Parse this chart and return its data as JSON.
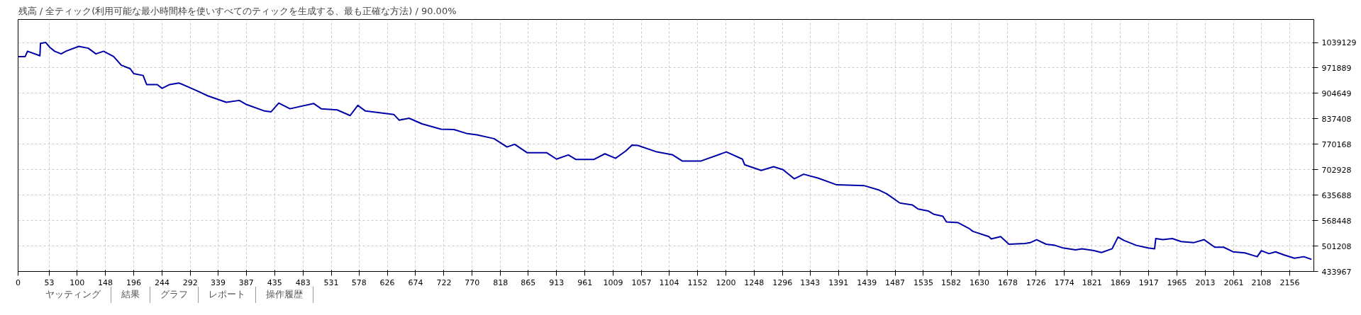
{
  "chart_data": {
    "type": "line",
    "title": "残高 / 全ティック(利用可能な最小時間枠を使いすべてのティックを生成する、最も正確な方法) / 90.00%",
    "annotations": [
      "ヤッティング",
      "結果",
      "グラフ",
      "レポート",
      "操作履歴"
    ],
    "xlim": [
      0,
      2197
    ],
    "ylim": [
      433967,
      1100000
    ],
    "xticks": [
      0,
      53,
      100,
      148,
      196,
      244,
      292,
      339,
      387,
      435,
      483,
      531,
      578,
      626,
      674,
      722,
      770,
      818,
      865,
      913,
      961,
      1009,
      1057,
      1104,
      1152,
      1200,
      1248,
      1296,
      1343,
      1391,
      1439,
      1487,
      1535,
      1582,
      1630,
      1678,
      1726,
      1774,
      1821,
      1869,
      1917,
      1965,
      2013,
      2061,
      2108,
      2156
    ],
    "yticks": [
      433967,
      501208,
      568448,
      635688,
      702928,
      770168,
      837408,
      904649,
      971889,
      1039129
    ],
    "grid": true,
    "marker": "none",
    "line_style": "solid",
    "series": [
      {
        "color": "#0000a8",
        "x": [
          0,
          12,
          16,
          37,
          38,
          47,
          54,
          62,
          73,
          81,
          103,
          119,
          132,
          145,
          162,
          175,
          190,
          196,
          212,
          218,
          236,
          244,
          257,
          273,
          301,
          322,
          353,
          375,
          386,
          418,
          429,
          442,
          461,
          501,
          514,
          541,
          563,
          576,
          589,
          637,
          646,
          663,
          685,
          717,
          739,
          760,
          778,
          807,
          829,
          842,
          863,
          896,
          913,
          933,
          946,
          976,
          995,
          1013,
          1030,
          1041,
          1051,
          1083,
          1110,
          1126,
          1158,
          1201,
          1228,
          1232,
          1260,
          1281,
          1297,
          1316,
          1332,
          1356,
          1388,
          1434,
          1460,
          1473,
          1495,
          1516,
          1526,
          1543,
          1553,
          1568,
          1574,
          1594,
          1612,
          1619,
          1646,
          1650,
          1666,
          1680,
          1707,
          1716,
          1727,
          1743,
          1758,
          1772,
          1793,
          1804,
          1824,
          1837,
          1855,
          1865,
          1875,
          1896,
          1916,
          1927,
          1929,
          1941,
          1957,
          1972,
          1993,
          2011,
          2029,
          2044,
          2060,
          2080,
          2101,
          2108,
          2121,
          2132,
          2146,
          2164,
          2180,
          2193
        ],
        "values": [
          1002000,
          1002000,
          1016000,
          1004000,
          1037000,
          1039000,
          1026000,
          1016000,
          1009000,
          1016000,
          1029000,
          1024000,
          1009000,
          1016000,
          1002000,
          979000,
          970000,
          957000,
          952000,
          928000,
          928000,
          918000,
          928000,
          932000,
          913000,
          898000,
          881000,
          886000,
          876000,
          858000,
          856000,
          879000,
          864000,
          878000,
          864000,
          861000,
          846000,
          873000,
          858000,
          849000,
          834000,
          839000,
          824000,
          810000,
          809000,
          799000,
          795000,
          785000,
          763000,
          770000,
          748000,
          748000,
          731000,
          742000,
          730000,
          730000,
          745000,
          733000,
          752000,
          768000,
          767000,
          750000,
          742000,
          726000,
          726000,
          750000,
          731000,
          716000,
          701000,
          711000,
          703000,
          679000,
          691000,
          681000,
          663000,
          661000,
          649000,
          639000,
          615000,
          610000,
          599000,
          594000,
          585000,
          580000,
          565000,
          563000,
          548000,
          540000,
          526000,
          520000,
          526000,
          506000,
          508000,
          510000,
          518000,
          506000,
          503000,
          496000,
          491000,
          494000,
          489000,
          484000,
          494000,
          525000,
          516000,
          503000,
          496000,
          494000,
          521000,
          518000,
          521000,
          513000,
          510000,
          518000,
          498000,
          498000,
          486000,
          483000,
          473000,
          489000,
          481000,
          486000,
          478000,
          469000,
          473000,
          466000
        ]
      }
    ]
  }
}
